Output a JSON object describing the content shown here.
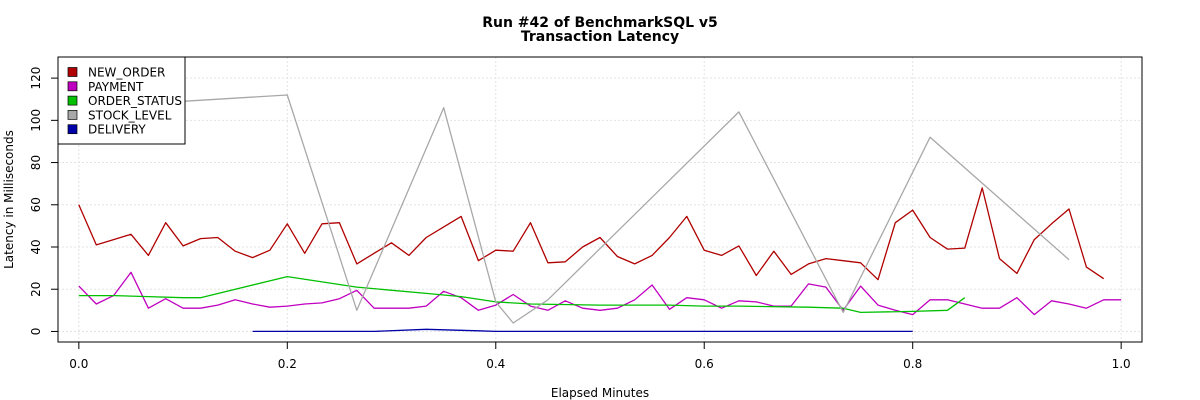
{
  "chart_data": {
    "type": "line",
    "title": [
      "Run #42 of BenchmarkSQL v5",
      "Transaction Latency"
    ],
    "xlabel": "Elapsed Minutes",
    "ylabel": "Latency in Milliseconds",
    "xlim": [
      -0.02,
      1.02
    ],
    "ylim": [
      -5,
      130
    ],
    "xticks": [
      "0.0",
      "0.2",
      "0.4",
      "0.6",
      "0.8",
      "1.0"
    ],
    "xtick_values": [
      0,
      0.2,
      0.4,
      0.6,
      0.8,
      1.0
    ],
    "yticks": [
      "0",
      "20",
      "40",
      "60",
      "80",
      "100",
      "120"
    ],
    "ytick_values": [
      0,
      20,
      40,
      60,
      80,
      100,
      120
    ],
    "grid": true,
    "legend_position": "top-left",
    "series": [
      {
        "name": "NEW_ORDER",
        "color": "#b00000",
        "x": [
          0.0,
          0.0167,
          0.0333,
          0.05,
          0.0667,
          0.0833,
          0.1,
          0.1167,
          0.1333,
          0.15,
          0.1667,
          0.1833,
          0.2,
          0.2167,
          0.2333,
          0.25,
          0.2667,
          0.2833,
          0.3,
          0.3167,
          0.3333,
          0.35,
          0.3667,
          0.3833,
          0.4,
          0.4167,
          0.4333,
          0.45,
          0.4667,
          0.4833,
          0.5,
          0.5167,
          0.5333,
          0.55,
          0.5667,
          0.5833,
          0.6,
          0.6167,
          0.6333,
          0.65,
          0.6667,
          0.6833,
          0.7,
          0.7167,
          0.7333,
          0.75,
          0.7667,
          0.7833,
          0.8,
          0.8167,
          0.8333,
          0.85,
          0.8667,
          0.8833,
          0.9,
          0.9167,
          0.9333,
          0.95,
          0.9667,
          0.9833
        ],
        "values": [
          60,
          41,
          43.5,
          46,
          36,
          51.5,
          40.5,
          44,
          44.5,
          38,
          35,
          38.5,
          51,
          37,
          51,
          51.5,
          32,
          37,
          42,
          36,
          44.5,
          49.5,
          54.5,
          33.5,
          38.5,
          38,
          51.5,
          32.5,
          33,
          40,
          44.5,
          35.5,
          32,
          36,
          44.5,
          54.5,
          38.5,
          36,
          40.5,
          26.5,
          38,
          27,
          32,
          34.5,
          33.5,
          32.5,
          24.5,
          51.5,
          57.5,
          44.5,
          39,
          39.5,
          68,
          34.5,
          27.5,
          43.5,
          51,
          58,
          30.5,
          25
        ]
      },
      {
        "name": "PAYMENT",
        "color": "#c000c0",
        "x": [
          0.0,
          0.0167,
          0.0333,
          0.05,
          0.0667,
          0.0833,
          0.1,
          0.1167,
          0.1333,
          0.15,
          0.1667,
          0.1833,
          0.2,
          0.2167,
          0.2333,
          0.25,
          0.2667,
          0.2833,
          0.3,
          0.3167,
          0.3333,
          0.35,
          0.3667,
          0.3833,
          0.4,
          0.4167,
          0.4333,
          0.45,
          0.4667,
          0.4833,
          0.5,
          0.5167,
          0.5333,
          0.55,
          0.5667,
          0.5833,
          0.6,
          0.6167,
          0.6333,
          0.65,
          0.6667,
          0.6833,
          0.7,
          0.7167,
          0.7333,
          0.75,
          0.7667,
          0.7833,
          0.8,
          0.8167,
          0.8333,
          0.85,
          0.8667,
          0.8833,
          0.9,
          0.9167,
          0.9333,
          0.95,
          0.9667,
          0.9833,
          1.0
        ],
        "values": [
          21.5,
          13,
          17,
          28,
          11,
          15.5,
          11,
          11,
          12.5,
          15,
          13,
          11.5,
          12,
          13,
          13.5,
          15.5,
          19.5,
          11,
          11,
          11,
          12,
          19,
          16,
          10,
          12.5,
          17.5,
          12,
          10,
          14.5,
          11,
          10,
          11,
          15,
          22,
          10.5,
          16,
          15,
          11,
          14.5,
          14,
          12,
          12,
          22.5,
          21,
          10,
          21.5,
          12.5,
          10,
          8,
          15,
          15,
          13,
          11,
          11,
          16,
          8,
          14.5,
          13,
          11,
          15,
          15
        ]
      },
      {
        "name": "ORDER_STATUS",
        "color": "#00c000",
        "x": [
          0.0,
          0.0333,
          0.0667,
          0.1,
          0.1167,
          0.2,
          0.2667,
          0.3333,
          0.3667,
          0.4,
          0.4333,
          0.5,
          0.5667,
          0.6,
          0.6333,
          0.7,
          0.7333,
          0.75,
          0.8,
          0.8333,
          0.85
        ],
        "values": [
          17,
          17,
          16.5,
          16,
          16,
          26,
          21,
          18,
          16.5,
          14,
          13,
          12.5,
          12.5,
          12,
          12,
          11.5,
          11,
          9,
          9.5,
          10,
          16
        ]
      },
      {
        "name": "STOCK_LEVEL",
        "color": "#a8a8a8",
        "x": [
          0.1,
          0.2,
          0.2667,
          0.35,
          0.4,
          0.4167,
          0.45,
          0.6333,
          0.7333,
          0.8167,
          0.95
        ],
        "values": [
          109,
          112,
          10,
          106,
          14,
          4,
          15,
          104,
          9,
          92,
          34
        ]
      },
      {
        "name": "DELIVERY",
        "color": "#0000a8",
        "x": [
          0.1667,
          0.2,
          0.25,
          0.2833,
          0.3333,
          0.3833,
          0.4,
          0.45,
          0.5,
          0.6,
          0.7,
          0.8
        ],
        "values": [
          0,
          0,
          0,
          0,
          1,
          0.3,
          0,
          0,
          0,
          0,
          0,
          0
        ]
      }
    ]
  }
}
